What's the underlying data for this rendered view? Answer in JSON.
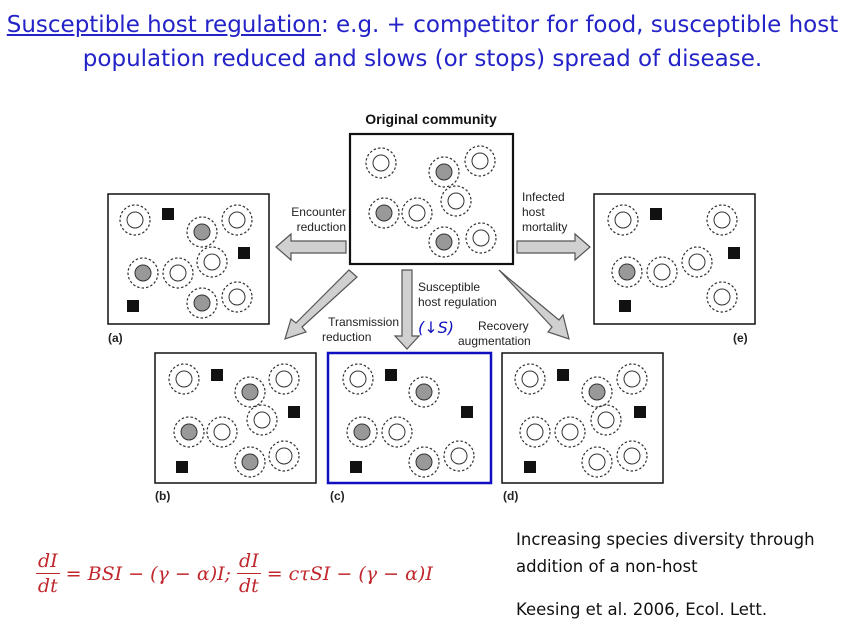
{
  "title": {
    "underlined": "Susceptible host regulation",
    "rest": ": e.g. + competitor for food, susceptible host population reduced and slows (or stops) spread of disease."
  },
  "diagram": {
    "original_label": "Original community",
    "arrows": {
      "encounter": [
        "Encounter",
        "reduction"
      ],
      "infected": [
        "Infected",
        "host",
        "mortality"
      ],
      "susceptible": [
        "Susceptible",
        "host regulation"
      ],
      "transmission": [
        "Transmission",
        "reduction"
      ],
      "recovery": [
        "Recovery",
        "augmentation"
      ]
    },
    "down_s": "(↓S)",
    "panels": [
      "(a)",
      "(b)",
      "(c)",
      "(d)",
      "(e)"
    ],
    "highlight_color": "#1010c0"
  },
  "equation": {
    "frac1": {
      "num": "dI",
      "den": "dt"
    },
    "part1": "= BSI − (γ − α)I;",
    "frac2": {
      "num": "dI",
      "den": "dt"
    },
    "part2": "= cτSI − (γ − α)I",
    "color": "#c0282e"
  },
  "note": "Increasing species diversity through addition of a non-host",
  "citation": "Keesing et al. 2006, Ecol. Lett."
}
